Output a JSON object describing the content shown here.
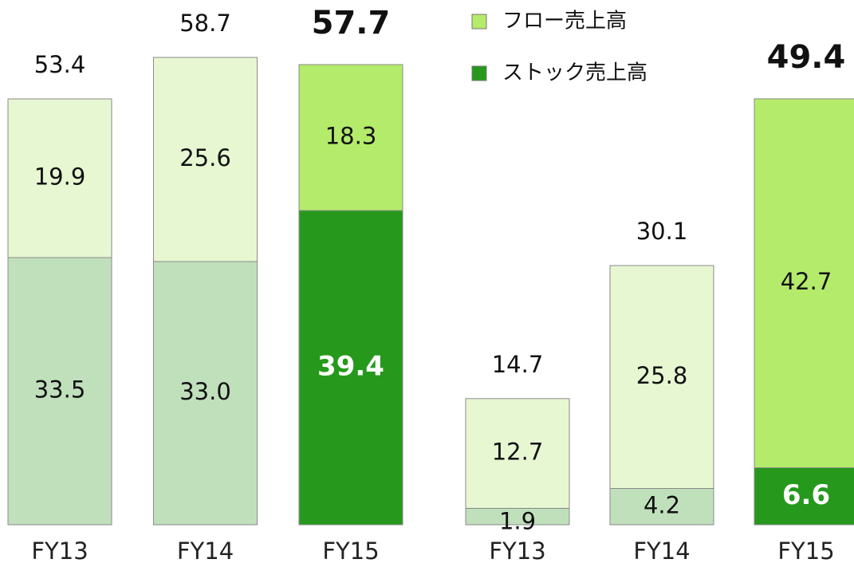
{
  "chart_data": [
    {
      "type": "bar",
      "stacked": true,
      "categories": [
        "FY13",
        "FY14",
        "FY15"
      ],
      "ylim": [
        0,
        65
      ],
      "series": [
        {
          "name": "ストック売上高",
          "colors": [
            "#c0e0bc",
            "#c0e0bc",
            "#26991d"
          ],
          "values": [
            33.5,
            33.0,
            39.4
          ],
          "value_labels": [
            "33.5",
            "33.0",
            "39.4"
          ]
        },
        {
          "name": "フロー売上高",
          "colors": [
            "#e7f7d2",
            "#e7f7d2",
            "#b4eb6b"
          ],
          "values": [
            19.9,
            25.6,
            18.3
          ]
        }
      ],
      "totals": [
        53.4,
        58.7,
        57.7
      ]
    },
    {
      "type": "bar",
      "stacked": true,
      "categories": [
        "FY13",
        "FY14",
        "FY15"
      ],
      "ylim": [
        0,
        60
      ],
      "series": [
        {
          "colors": [
            "#c0e0bc",
            "#c0e0bc",
            "#26991d"
          ],
          "values": [
            1.9,
            4.2,
            6.6
          ]
        },
        {
          "colors": [
            "#e7f7d2",
            "#e7f7d2",
            "#b4eb6b"
          ],
          "values": [
            12.7,
            25.8,
            42.7
          ]
        }
      ],
      "totals": [
        14.7,
        30.1,
        49.4
      ]
    }
  ]
}
